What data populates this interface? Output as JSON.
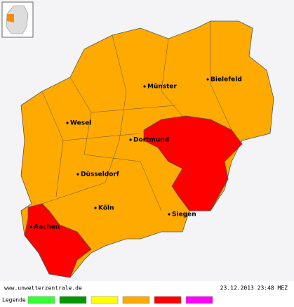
{
  "map": {
    "cities": [
      "Münster",
      "Bielefeld",
      "Wesel",
      "Dortmund",
      "Düsseldorf",
      "Köln",
      "Siegen",
      "Aachen"
    ],
    "source": "www.unwetterzentrale.de",
    "timestamp": "23.12.2013 23:48 MEZ"
  },
  "legend": {
    "label": "Legende",
    "colors": [
      "#33ff33",
      "#009900",
      "#ffff00",
      "#ffaa00",
      "#ff0000",
      "#ff00ff"
    ]
  }
}
